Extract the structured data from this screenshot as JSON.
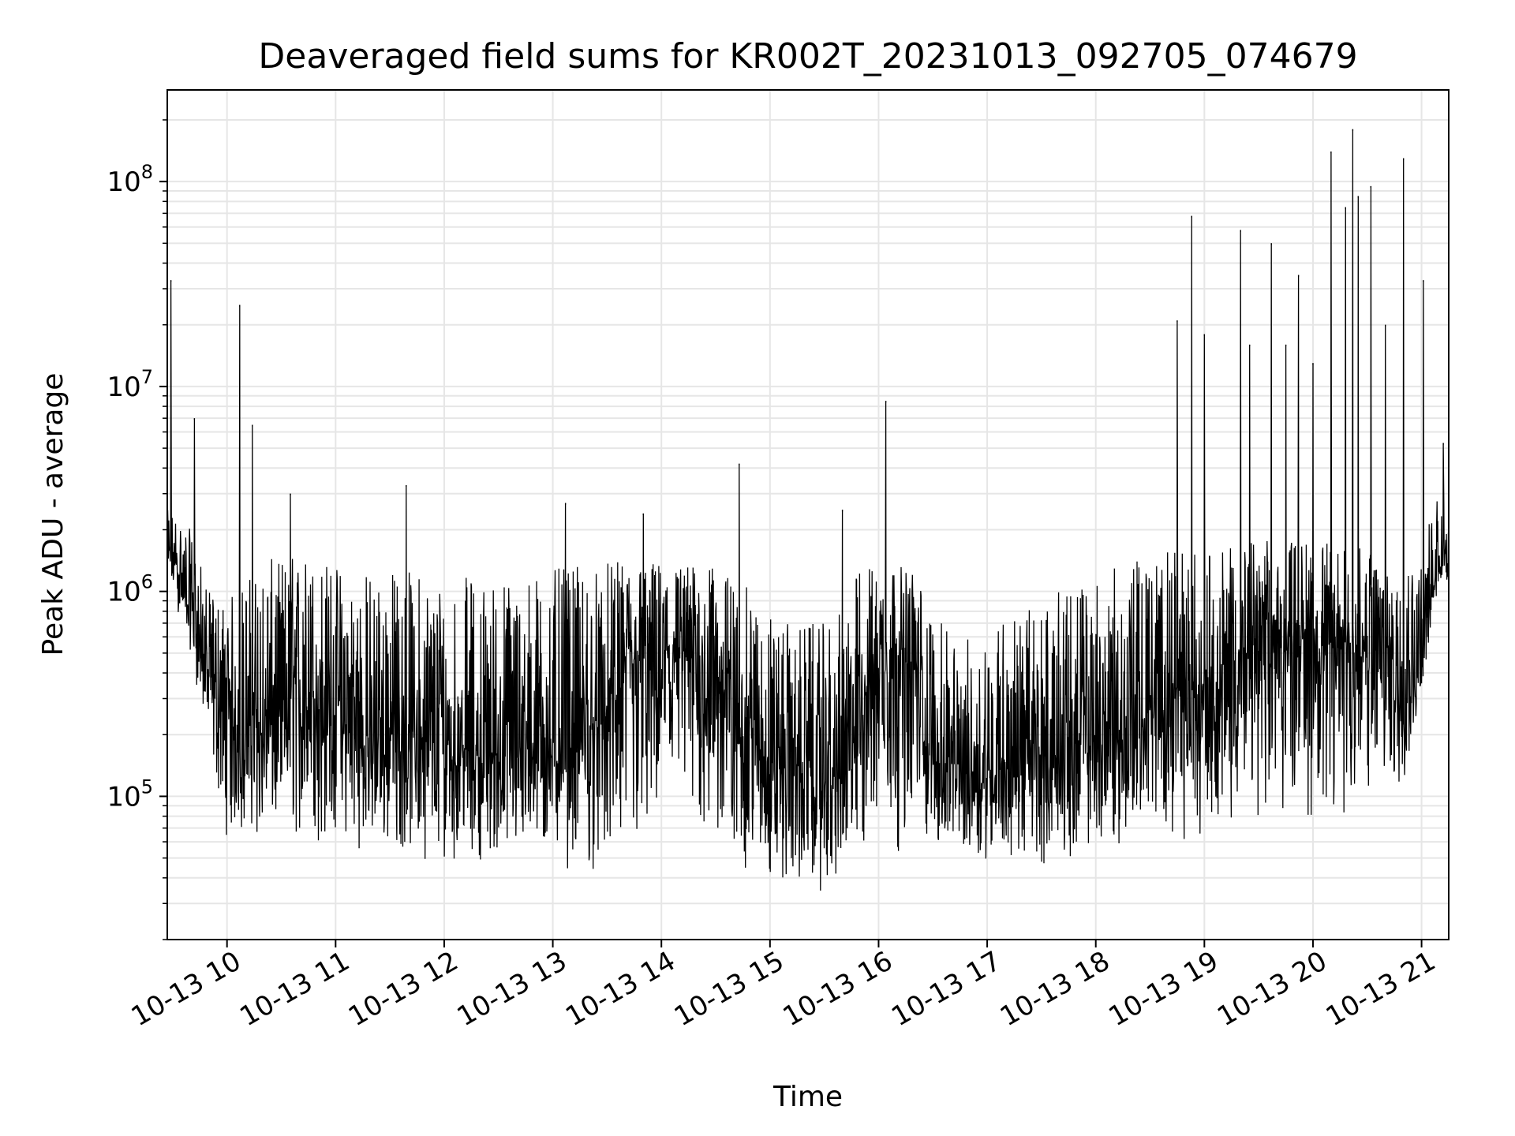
{
  "chart_data": {
    "type": "line",
    "title": "Deaveraged field sums for KR002T_20231013_092705_074679",
    "xlabel": "Time",
    "ylabel": "Peak ADU - average",
    "yscale": "log",
    "grid": true,
    "line_color": "#000000",
    "grid_color": "#e6e6e6",
    "x_range": [
      "2023-10-13 09:27",
      "2023-10-13 21:15"
    ],
    "ylim": [
      20000,
      280000000
    ],
    "x_tick_labels": [
      "10-13 10",
      "10-13 11",
      "10-13 12",
      "10-13 13",
      "10-13 14",
      "10-13 15",
      "10-13 16",
      "10-13 17",
      "10-13 18",
      "10-13 19",
      "10-13 20",
      "10-13 21"
    ],
    "y_tick_labels": [
      {
        "base": "10",
        "exp": "5",
        "value": 100000
      },
      {
        "base": "10",
        "exp": "6",
        "value": 1000000
      },
      {
        "base": "10",
        "exp": "7",
        "value": 10000000
      },
      {
        "base": "10",
        "exp": "8",
        "value": 100000000
      }
    ],
    "series": [
      {
        "x": [
          "09:30",
          "09:40",
          "09:50",
          "10:00",
          "10:10",
          "10:20",
          "10:30",
          "10:40",
          "10:50",
          "11:00",
          "11:10",
          "11:20",
          "11:30",
          "11:40",
          "11:50",
          "12:00",
          "12:10",
          "12:20",
          "12:30",
          "12:40",
          "12:50",
          "13:00",
          "13:10",
          "13:20",
          "13:30",
          "13:40",
          "13:50",
          "14:00",
          "14:10",
          "14:20",
          "14:30",
          "14:40",
          "14:50",
          "15:00",
          "15:10",
          "15:20",
          "15:30",
          "15:40",
          "15:50",
          "16:00",
          "16:10",
          "16:20",
          "16:30",
          "16:40",
          "16:50",
          "17:00",
          "17:10",
          "17:20",
          "17:30",
          "17:40",
          "17:50",
          "18:00",
          "18:10",
          "18:20",
          "18:30",
          "18:40",
          "18:50",
          "19:00",
          "19:10",
          "19:20",
          "19:30",
          "19:40",
          "19:50",
          "20:00",
          "20:10",
          "20:20",
          "20:30",
          "20:40",
          "20:50",
          "21:00",
          "21:10"
        ],
        "median": [
          1500000,
          800000,
          400000,
          220000,
          200000,
          200000,
          250000,
          300000,
          300000,
          280000,
          200000,
          180000,
          200000,
          200000,
          180000,
          180000,
          170000,
          160000,
          160000,
          170000,
          170000,
          180000,
          180000,
          200000,
          250000,
          400000,
          450000,
          500000,
          500000,
          450000,
          400000,
          250000,
          200000,
          150000,
          150000,
          130000,
          120000,
          120000,
          300000,
          500000,
          500000,
          400000,
          150000,
          130000,
          130000,
          130000,
          150000,
          150000,
          150000,
          160000,
          170000,
          180000,
          200000,
          200000,
          250000,
          300000,
          300000,
          350000,
          350000,
          500000,
          600000,
          600000,
          600000,
          550000,
          550000,
          550000,
          500000,
          500000,
          450000,
          500000,
          1500000
        ],
        "low": [
          900000,
          500000,
          150000,
          60000,
          58000,
          57000,
          60000,
          55000,
          50000,
          55000,
          56000,
          50000,
          52000,
          50000,
          48000,
          45000,
          50000,
          48000,
          47000,
          46000,
          48000,
          45000,
          42000,
          40000,
          38000,
          36000,
          42000,
          55000,
          60000,
          55000,
          45000,
          40000,
          38000,
          35000,
          33000,
          32000,
          33000,
          35000,
          40000,
          45000,
          50000,
          55000,
          55000,
          52000,
          50000,
          48000,
          45000,
          42000,
          45000,
          48000,
          50000,
          52000,
          55000,
          58000,
          60000,
          65000,
          60000,
          62000,
          65000,
          70000,
          75000,
          75000,
          75000,
          70000,
          65000,
          70000,
          80000,
          90000,
          100000,
          300000,
          1000000
        ],
        "high": [
          2500000,
          2000000,
          1000000,
          900000,
          1200000,
          1400000,
          1500000,
          1600000,
          1500000,
          1400000,
          1300000,
          1300000,
          1300000,
          1300000,
          1250000,
          1250000,
          1200000,
          1200000,
          1200000,
          1250000,
          1250000,
          1300000,
          1300000,
          1350000,
          1400000,
          1400000,
          1450000,
          1400000,
          1400000,
          1350000,
          1300000,
          1200000,
          1000000,
          800000,
          700000,
          700000,
          700000,
          800000,
          1400000,
          1400000,
          1350000,
          1300000,
          800000,
          600000,
          600000,
          700000,
          800000,
          800000,
          900000,
          1000000,
          1100000,
          1200000,
          1300000,
          1400000,
          1500000,
          1600000,
          1600000,
          1600000,
          1600000,
          1700000,
          1800000,
          1800000,
          1800000,
          1800000,
          1700000,
          1700000,
          1600000,
          1500000,
          1400000,
          1800000,
          3000000
        ]
      }
    ],
    "spikes": [
      {
        "x": "09:29",
        "y": 33000000
      },
      {
        "x": "09:42",
        "y": 7000000
      },
      {
        "x": "10:07",
        "y": 25000000
      },
      {
        "x": "10:14",
        "y": 6500000
      },
      {
        "x": "10:35",
        "y": 3000000
      },
      {
        "x": "11:39",
        "y": 3300000
      },
      {
        "x": "13:07",
        "y": 2700000
      },
      {
        "x": "13:50",
        "y": 2400000
      },
      {
        "x": "14:43",
        "y": 4200000
      },
      {
        "x": "15:40",
        "y": 2500000
      },
      {
        "x": "16:04",
        "y": 8500000
      },
      {
        "x": "18:45",
        "y": 21000000
      },
      {
        "x": "18:53",
        "y": 68000000
      },
      {
        "x": "19:00",
        "y": 18000000
      },
      {
        "x": "19:20",
        "y": 58000000
      },
      {
        "x": "19:25",
        "y": 16000000
      },
      {
        "x": "19:37",
        "y": 50000000
      },
      {
        "x": "19:45",
        "y": 16000000
      },
      {
        "x": "19:52",
        "y": 35000000
      },
      {
        "x": "20:00",
        "y": 13000000
      },
      {
        "x": "20:10",
        "y": 140000000
      },
      {
        "x": "20:18",
        "y": 75000000
      },
      {
        "x": "20:22",
        "y": 180000000
      },
      {
        "x": "20:25",
        "y": 85000000
      },
      {
        "x": "20:32",
        "y": 95000000
      },
      {
        "x": "20:40",
        "y": 20000000
      },
      {
        "x": "20:50",
        "y": 130000000
      },
      {
        "x": "21:01",
        "y": 33000000
      },
      {
        "x": "21:12",
        "y": 5300000
      }
    ]
  }
}
